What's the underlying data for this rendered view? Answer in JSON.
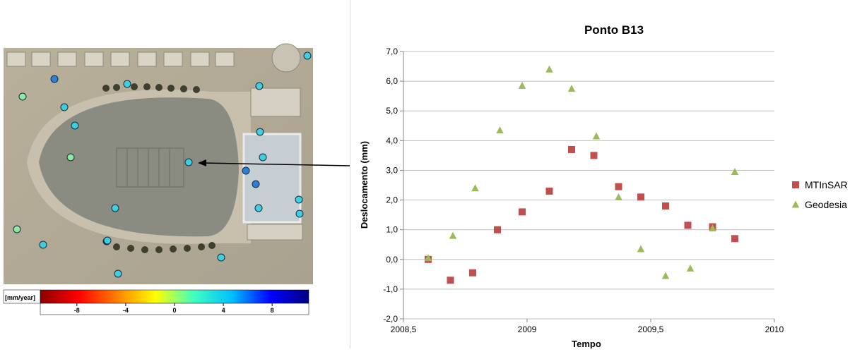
{
  "map": {
    "colorbar": {
      "unit_label": "[mm/year]",
      "tick_labels": [
        "-8",
        "-4",
        "0",
        "4",
        "8"
      ],
      "colors": [
        "#8b0000",
        "#ff0000",
        "#ff8000",
        "#ffff00",
        "#40ffc0",
        "#00bfff",
        "#0000ff",
        "#000080"
      ]
    },
    "point_colors": {
      "cyan": "#3fd0e0",
      "light_green": "#8fe8a0",
      "blue": "#2b7fd4",
      "dark_blue": "#1a2f9a"
    },
    "points": [
      {
        "value": 2,
        "color": "cyan"
      },
      {
        "value": 5,
        "color": "blue"
      },
      {
        "value": 1,
        "color": "light_green"
      },
      {
        "value": 3,
        "color": "cyan"
      },
      {
        "value": 3,
        "color": "cyan"
      },
      {
        "value": 3,
        "color": "cyan"
      },
      {
        "value": 2,
        "color": "cyan"
      },
      {
        "value": 2,
        "color": "light_green"
      },
      {
        "value": 3,
        "color": "cyan"
      },
      {
        "value": 4,
        "color": "cyan"
      },
      {
        "value": 4,
        "color": "cyan"
      },
      {
        "value": 5,
        "color": "blue"
      },
      {
        "value": 5,
        "color": "blue"
      },
      {
        "value": 4,
        "color": "cyan"
      },
      {
        "value": 4,
        "color": "cyan"
      },
      {
        "value": 4,
        "color": "cyan"
      },
      {
        "value": 3,
        "color": "cyan"
      },
      {
        "value": 4,
        "color": "cyan"
      },
      {
        "value": 1,
        "color": "light_green"
      },
      {
        "value": 4,
        "color": "cyan"
      },
      {
        "value": 8,
        "color": "dark_blue"
      },
      {
        "value": 3,
        "color": "cyan"
      },
      {
        "value": 3,
        "color": "cyan"
      }
    ]
  },
  "chart_data": {
    "type": "scatter",
    "title": "Ponto B13",
    "xlabel": "Tempo",
    "ylabel": "Deslocamento (mm)",
    "xlim": [
      2008.5,
      2010
    ],
    "ylim": [
      -2,
      7
    ],
    "x_ticks": [
      2008.5,
      2009,
      2009.5,
      2010
    ],
    "x_tick_labels": [
      "2008,5",
      "2009",
      "2009,5",
      "2010"
    ],
    "y_ticks": [
      -2,
      -1,
      0,
      1,
      2,
      3,
      4,
      5,
      6,
      7
    ],
    "y_tick_labels": [
      "-2,0",
      "-1,0",
      "0,0",
      "1,0",
      "2,0",
      "3,0",
      "4,0",
      "5,0",
      "6,0",
      "7,0"
    ],
    "grid": "horizontal",
    "legend_position": "right",
    "series": [
      {
        "name": "MTInSAR",
        "marker": "square",
        "color": "#c0504d",
        "x": [
          2008.6,
          2008.69,
          2008.78,
          2008.88,
          2008.98,
          2009.09,
          2009.18,
          2009.27,
          2009.37,
          2009.46,
          2009.56,
          2009.65,
          2009.75,
          2009.84
        ],
        "y": [
          0.0,
          -0.7,
          -0.45,
          1.0,
          1.6,
          2.3,
          3.7,
          3.5,
          2.45,
          2.1,
          1.8,
          1.15,
          1.1,
          0.7
        ]
      },
      {
        "name": "Geodesia",
        "marker": "triangle",
        "color": "#9bbb59",
        "x": [
          2008.6,
          2008.7,
          2008.79,
          2008.89,
          2008.98,
          2009.09,
          2009.18,
          2009.28,
          2009.37,
          2009.46,
          2009.56,
          2009.66,
          2009.75,
          2009.84
        ],
        "y": [
          0.05,
          0.8,
          2.4,
          4.35,
          5.85,
          6.4,
          5.75,
          4.15,
          2.1,
          0.35,
          -0.55,
          -0.3,
          1.05,
          2.95
        ]
      }
    ]
  }
}
